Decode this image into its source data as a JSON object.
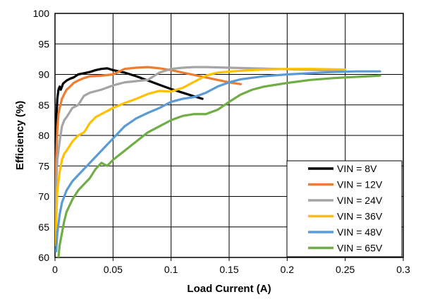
{
  "chart_data": {
    "type": "line",
    "title": "",
    "xlabel": "Load Current (A)",
    "ylabel": "Efficiency (%)",
    "xlim": [
      0,
      0.3
    ],
    "ylim": [
      60,
      100
    ],
    "x_ticks": [
      0,
      0.05,
      0.1,
      0.15,
      0.2,
      0.25,
      0.3
    ],
    "x_tick_labels": [
      "0",
      "0.05",
      "0.1",
      "0.15",
      "0.2",
      "0.25",
      "0.3"
    ],
    "y_ticks": [
      60,
      65,
      70,
      75,
      80,
      85,
      90,
      95,
      100
    ],
    "y_tick_labels": [
      "60",
      "65",
      "70",
      "75",
      "80",
      "85",
      "90",
      "95",
      "100"
    ],
    "grid": true,
    "legend_position": "bottom-right",
    "series": [
      {
        "name": "VIN = 8V",
        "color": "#000000",
        "points": [
          [
            0.0005,
            75
          ],
          [
            0.001,
            82
          ],
          [
            0.002,
            86
          ],
          [
            0.003,
            87.5
          ],
          [
            0.004,
            88
          ],
          [
            0.005,
            87.5
          ],
          [
            0.007,
            88.5
          ],
          [
            0.01,
            89
          ],
          [
            0.013,
            89.3
          ],
          [
            0.016,
            89.5
          ],
          [
            0.02,
            90
          ],
          [
            0.025,
            90.2
          ],
          [
            0.03,
            90.4
          ],
          [
            0.035,
            90.7
          ],
          [
            0.04,
            90.9
          ],
          [
            0.045,
            91
          ],
          [
            0.05,
            90.7
          ],
          [
            0.06,
            90.3
          ],
          [
            0.07,
            89.7
          ],
          [
            0.08,
            89
          ],
          [
            0.09,
            88.3
          ],
          [
            0.1,
            87.6
          ],
          [
            0.11,
            87
          ],
          [
            0.12,
            86.4
          ],
          [
            0.127,
            86
          ]
        ]
      },
      {
        "name": "VIN = 12V",
        "color": "#ED7D31",
        "points": [
          [
            0.0005,
            70
          ],
          [
            0.001,
            76
          ],
          [
            0.002,
            81
          ],
          [
            0.003,
            83.5
          ],
          [
            0.004,
            84.5
          ],
          [
            0.006,
            86
          ],
          [
            0.008,
            86.8
          ],
          [
            0.01,
            87.5
          ],
          [
            0.013,
            88
          ],
          [
            0.016,
            88.6
          ],
          [
            0.02,
            89
          ],
          [
            0.025,
            89.4
          ],
          [
            0.03,
            89.7
          ],
          [
            0.04,
            89.8
          ],
          [
            0.05,
            90
          ],
          [
            0.06,
            90.9
          ],
          [
            0.07,
            91.1
          ],
          [
            0.08,
            91.2
          ],
          [
            0.09,
            91
          ],
          [
            0.1,
            90.7
          ],
          [
            0.11,
            90.3
          ],
          [
            0.12,
            89.9
          ],
          [
            0.13,
            89.5
          ],
          [
            0.14,
            89.1
          ],
          [
            0.15,
            88.7
          ],
          [
            0.16,
            88.4
          ]
        ]
      },
      {
        "name": "VIN = 24V",
        "color": "#A5A5A5",
        "points": [
          [
            0.0005,
            65
          ],
          [
            0.001,
            72
          ],
          [
            0.002,
            76
          ],
          [
            0.004,
            79
          ],
          [
            0.006,
            81.5
          ],
          [
            0.008,
            82.5
          ],
          [
            0.01,
            83
          ],
          [
            0.015,
            84.5
          ],
          [
            0.02,
            85
          ],
          [
            0.025,
            86.5
          ],
          [
            0.03,
            87
          ],
          [
            0.04,
            87.5
          ],
          [
            0.05,
            88.2
          ],
          [
            0.06,
            88.7
          ],
          [
            0.07,
            88.9
          ],
          [
            0.08,
            89.1
          ],
          [
            0.09,
            90.3
          ],
          [
            0.1,
            90.9
          ],
          [
            0.11,
            91.1
          ],
          [
            0.12,
            91.2
          ],
          [
            0.13,
            91.2
          ],
          [
            0.15,
            91.1
          ],
          [
            0.17,
            91
          ],
          [
            0.19,
            90.9
          ],
          [
            0.21,
            90.8
          ],
          [
            0.23,
            90.7
          ],
          [
            0.25,
            90.6
          ]
        ]
      },
      {
        "name": "VIN = 36V",
        "color": "#FFC000",
        "points": [
          [
            0.0005,
            62
          ],
          [
            0.001,
            66
          ],
          [
            0.002,
            71
          ],
          [
            0.004,
            74
          ],
          [
            0.006,
            76
          ],
          [
            0.008,
            77
          ],
          [
            0.01,
            77.5
          ],
          [
            0.015,
            79
          ],
          [
            0.02,
            80
          ],
          [
            0.025,
            80.5
          ],
          [
            0.03,
            82
          ],
          [
            0.035,
            83
          ],
          [
            0.04,
            83.5
          ],
          [
            0.05,
            84.5
          ],
          [
            0.06,
            85.3
          ],
          [
            0.07,
            86
          ],
          [
            0.08,
            86.8
          ],
          [
            0.09,
            87.3
          ],
          [
            0.1,
            87.2
          ],
          [
            0.11,
            87.8
          ],
          [
            0.12,
            88.8
          ],
          [
            0.13,
            89.8
          ],
          [
            0.14,
            90.3
          ],
          [
            0.16,
            90.6
          ],
          [
            0.18,
            90.8
          ],
          [
            0.2,
            90.9
          ],
          [
            0.22,
            90.9
          ],
          [
            0.25,
            90.8
          ]
        ]
      },
      {
        "name": "VIN = 48V",
        "color": "#5B9BD5",
        "points": [
          [
            0.001,
            61
          ],
          [
            0.002,
            64
          ],
          [
            0.004,
            67
          ],
          [
            0.006,
            69
          ],
          [
            0.008,
            70
          ],
          [
            0.01,
            71
          ],
          [
            0.015,
            72.5
          ],
          [
            0.02,
            73.5
          ],
          [
            0.025,
            74.5
          ],
          [
            0.03,
            75.5
          ],
          [
            0.04,
            77.5
          ],
          [
            0.05,
            79.5
          ],
          [
            0.06,
            81.5
          ],
          [
            0.07,
            82.8
          ],
          [
            0.08,
            83.7
          ],
          [
            0.09,
            84.5
          ],
          [
            0.1,
            85.5
          ],
          [
            0.11,
            86
          ],
          [
            0.12,
            86.3
          ],
          [
            0.13,
            87
          ],
          [
            0.14,
            88
          ],
          [
            0.15,
            88.7
          ],
          [
            0.16,
            89.2
          ],
          [
            0.18,
            89.7
          ],
          [
            0.2,
            90
          ],
          [
            0.22,
            90.2
          ],
          [
            0.24,
            90.4
          ],
          [
            0.26,
            90.5
          ],
          [
            0.28,
            90.5
          ]
        ]
      },
      {
        "name": "VIN = 65V",
        "color": "#70AD47",
        "points": [
          [
            0.003,
            60
          ],
          [
            0.004,
            62
          ],
          [
            0.006,
            64
          ],
          [
            0.008,
            66
          ],
          [
            0.01,
            67.5
          ],
          [
            0.015,
            69.5
          ],
          [
            0.02,
            71
          ],
          [
            0.025,
            72
          ],
          [
            0.03,
            73
          ],
          [
            0.035,
            74.5
          ],
          [
            0.04,
            75.5
          ],
          [
            0.045,
            75
          ],
          [
            0.05,
            76
          ],
          [
            0.06,
            77.5
          ],
          [
            0.07,
            79
          ],
          [
            0.08,
            80.5
          ],
          [
            0.09,
            81.5
          ],
          [
            0.1,
            82.5
          ],
          [
            0.11,
            83.2
          ],
          [
            0.12,
            83.5
          ],
          [
            0.13,
            83.5
          ],
          [
            0.14,
            84.2
          ],
          [
            0.15,
            85.5
          ],
          [
            0.16,
            86.7
          ],
          [
            0.17,
            87.5
          ],
          [
            0.18,
            88
          ],
          [
            0.2,
            88.6
          ],
          [
            0.22,
            89.1
          ],
          [
            0.24,
            89.4
          ],
          [
            0.26,
            89.6
          ],
          [
            0.28,
            89.8
          ]
        ]
      }
    ]
  }
}
